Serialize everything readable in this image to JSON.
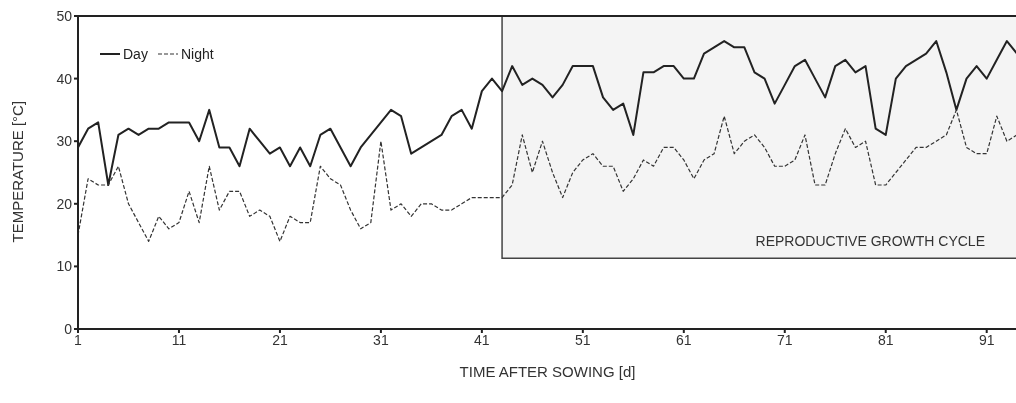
{
  "chart_data": {
    "type": "line",
    "xlabel": "TIME AFTER SOWING [d]",
    "ylabel": "TEMPERATURE [°C]",
    "x": [
      1,
      2,
      3,
      4,
      5,
      6,
      7,
      8,
      9,
      10,
      11,
      12,
      13,
      14,
      15,
      16,
      17,
      18,
      19,
      20,
      21,
      22,
      23,
      24,
      25,
      26,
      27,
      28,
      29,
      30,
      31,
      32,
      33,
      34,
      35,
      36,
      37,
      38,
      39,
      40,
      41,
      42,
      43,
      44,
      45,
      46,
      47,
      48,
      49,
      50,
      51,
      52,
      53,
      54,
      55,
      56,
      57,
      58,
      59,
      60,
      61,
      62,
      63,
      64,
      65,
      66,
      67,
      68,
      69,
      70,
      71,
      72,
      73,
      74,
      75,
      76,
      77,
      78,
      79,
      80,
      81,
      82,
      83,
      84,
      85,
      86,
      87,
      88,
      89,
      90,
      91,
      92,
      93,
      94
    ],
    "series": [
      {
        "name": "Day",
        "color": "#222222",
        "line_style": "solid",
        "values": [
          29,
          32,
          33,
          23,
          31,
          32,
          31,
          32,
          32,
          33,
          33,
          33,
          30,
          35,
          29,
          29,
          26,
          32,
          30,
          28,
          29,
          26,
          29,
          26,
          31,
          32,
          29,
          26,
          29,
          31,
          33,
          35,
          34,
          28,
          29,
          30,
          31,
          34,
          35,
          32,
          38,
          40,
          38,
          42,
          39,
          40,
          39,
          37,
          39,
          42,
          42,
          42,
          37,
          35,
          36,
          31,
          41,
          41,
          42,
          42,
          40,
          40,
          44,
          45,
          46,
          45,
          45,
          41,
          40,
          36,
          39,
          42,
          43,
          40,
          37,
          42,
          43,
          41,
          42,
          32,
          31,
          40,
          42,
          43,
          44,
          46,
          41,
          35,
          40,
          42,
          40,
          43,
          46,
          44
        ]
      },
      {
        "name": "Night",
        "color": "#333333",
        "line_style": "dashed",
        "values": [
          15,
          24,
          23,
          23,
          26,
          20,
          17,
          14,
          18,
          16,
          17,
          22,
          17,
          26,
          19,
          22,
          22,
          18,
          19,
          18,
          14,
          18,
          17,
          17,
          26,
          24,
          23,
          19,
          16,
          17,
          30,
          19,
          20,
          18,
          20,
          20,
          19,
          19,
          20,
          21,
          21,
          21,
          21,
          23,
          31,
          25,
          30,
          25,
          21,
          25,
          27,
          28,
          26,
          26,
          22,
          24,
          27,
          26,
          29,
          29,
          27,
          24,
          27,
          28,
          34,
          28,
          30,
          31,
          29,
          26,
          26,
          27,
          31,
          23,
          23,
          28,
          32,
          29,
          30,
          23,
          23,
          25,
          27,
          29,
          29,
          30,
          31,
          35,
          29,
          28,
          28,
          34,
          30,
          31
        ]
      }
    ],
    "xlim": [
      1,
      94
    ],
    "xticks": [
      1,
      11,
      21,
      31,
      41,
      51,
      61,
      71,
      81,
      91
    ],
    "ylim": [
      0,
      50
    ],
    "yticks": [
      0,
      10,
      20,
      30,
      40,
      50
    ],
    "bands": [
      {
        "axis": "x",
        "from": 43,
        "to": 94,
        "label": "REPRODUCTIVE GROWTH CYCLE",
        "color": "#444444"
      }
    ],
    "grid": false,
    "legend": "top left",
    "marker": "none"
  }
}
